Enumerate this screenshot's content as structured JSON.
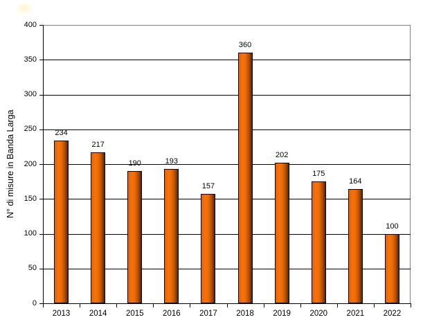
{
  "chart_data": {
    "type": "bar",
    "categories": [
      "2013",
      "2014",
      "2015",
      "2016",
      "2017",
      "2018",
      "2019",
      "2020",
      "2021",
      "2022"
    ],
    "values": [
      234,
      217,
      190,
      193,
      157,
      360,
      202,
      175,
      164,
      100
    ],
    "data_labels": [
      "234",
      "217",
      "190",
      "193",
      "157",
      "360",
      "202",
      "175",
      "164",
      "100"
    ],
    "title": "",
    "xlabel": "",
    "ylabel": "N° di misure in Banda Larga",
    "ylim": [
      0,
      400
    ],
    "yticks": [
      0,
      50,
      100,
      150,
      200,
      250,
      300,
      350,
      400
    ],
    "grid": "horizontal",
    "legend_position": "none",
    "colors": {
      "bar_gradient_stops": [
        "#E65F06",
        "#F57409",
        "#ED6A08",
        "#AE4E07",
        "#53250A"
      ],
      "bar_gradient_positions": [
        "0%",
        "28%",
        "52%",
        "78%",
        "100%"
      ],
      "bar_border": "#000000",
      "gridline": "#000000",
      "plot_border": "#808080",
      "axis_line": "#000000",
      "text": "#000000",
      "background": "#FFFFFF"
    }
  }
}
